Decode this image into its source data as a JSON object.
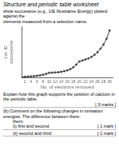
{
  "chart_data": {
    "type": "line",
    "title": "Structure and periodic table worksheet",
    "subtitle": [
      "show successive (e.g., 1IE Illustrative Energy) plotted against the",
      "elements measured from a selection name."
    ],
    "x_label": "No. of electrons removed",
    "y_label": [
      "1st. IE",
      "successive"
    ],
    "x": [
      1,
      2,
      3,
      4,
      5,
      6,
      7,
      8,
      9,
      10,
      11,
      12,
      13,
      14,
      15,
      16,
      17,
      18,
      19,
      20,
      21,
      22,
      23,
      24,
      25,
      26,
      27,
      28,
      29,
      30
    ],
    "values": [
      5,
      6,
      7,
      8,
      9,
      11,
      13,
      16,
      20,
      25,
      26,
      27,
      28,
      30,
      33,
      37,
      43,
      52,
      65,
      80,
      85,
      90,
      95,
      102,
      112,
      125,
      142,
      162,
      190,
      230
    ],
    "color": "#444444",
    "marker": "circle",
    "xlim": [
      1,
      31
    ],
    "xticks": [
      2,
      4,
      6,
      8,
      10,
      12,
      14,
      16,
      18,
      20,
      22,
      24,
      26,
      28,
      30
    ],
    "ylim": [
      0,
      250
    ],
    "grid": false,
    "tick_labels": "x",
    "annotations": [
      "Explain how this graph supports the position of calcium in the periodic table.",
      "[ 3 marks ]",
      "(b)",
      "Comment on the following changes in ionisation energies. The difference between them:",
      "them:",
      "(i)",
      "first and second",
      "[ 1 mark ]",
      "(ii)",
      "second and third",
      "[ 1 mark ]"
    ]
  }
}
